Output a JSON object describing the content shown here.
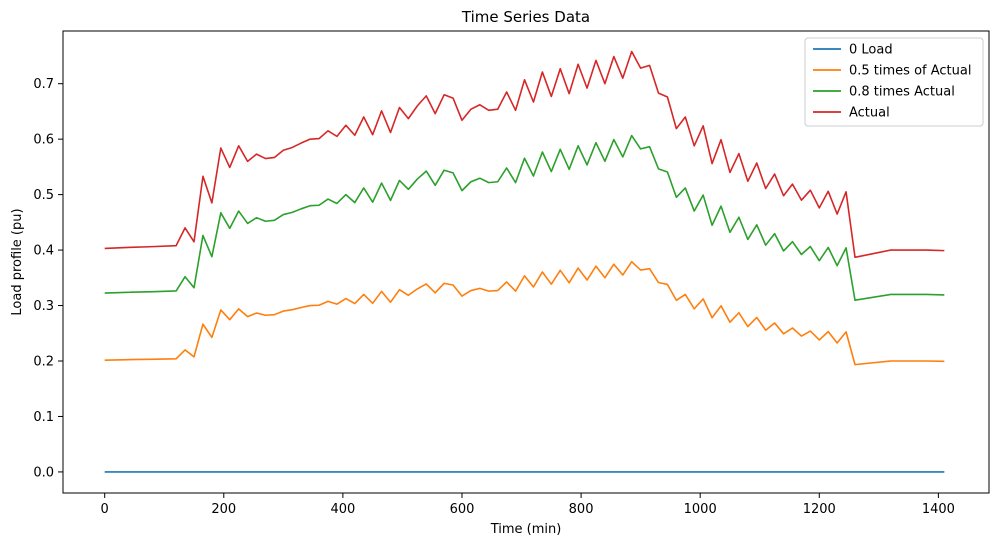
{
  "chart_data": {
    "type": "line",
    "title": "Time Series Data",
    "xlabel": "Time (min)",
    "ylabel": "Load profile (pu)",
    "xlim": [
      -70,
      1485
    ],
    "ylim": [
      -0.038,
      0.795
    ],
    "xticks": [
      0,
      200,
      400,
      600,
      800,
      1000,
      1200,
      1400
    ],
    "yticks": [
      0.0,
      0.1,
      0.2,
      0.3,
      0.4,
      0.5,
      0.6,
      0.7
    ],
    "ytick_labels": [
      "0.0",
      "0.1",
      "0.2",
      "0.3",
      "0.4",
      "0.5",
      "0.6",
      "0.7"
    ],
    "grid": false,
    "legend_position": "top-right",
    "actual_x": [
      0,
      45,
      75,
      120,
      135,
      150,
      165,
      180,
      195,
      210,
      225,
      240,
      255,
      270,
      285,
      300,
      315,
      330,
      345,
      360,
      375,
      390,
      405,
      420,
      435,
      450,
      465,
      480,
      495,
      510,
      525,
      540,
      555,
      570,
      585,
      600,
      615,
      630,
      645,
      660,
      675,
      690,
      705,
      720,
      735,
      750,
      765,
      780,
      795,
      810,
      825,
      840,
      855,
      870,
      885,
      900,
      915,
      930,
      945,
      960,
      975,
      990,
      1005,
      1020,
      1035,
      1050,
      1065,
      1080,
      1095,
      1110,
      1125,
      1140,
      1155,
      1170,
      1185,
      1200,
      1215,
      1230,
      1245,
      1260,
      1320,
      1380,
      1410
    ],
    "actual_y": [
      0.403,
      0.405,
      0.406,
      0.408,
      0.44,
      0.415,
      0.533,
      0.485,
      0.584,
      0.549,
      0.588,
      0.56,
      0.573,
      0.565,
      0.567,
      0.58,
      0.585,
      0.593,
      0.6,
      0.601,
      0.615,
      0.605,
      0.625,
      0.607,
      0.64,
      0.608,
      0.651,
      0.612,
      0.657,
      0.637,
      0.66,
      0.678,
      0.646,
      0.68,
      0.674,
      0.634,
      0.654,
      0.662,
      0.652,
      0.654,
      0.685,
      0.652,
      0.707,
      0.667,
      0.721,
      0.677,
      0.727,
      0.682,
      0.735,
      0.692,
      0.742,
      0.7,
      0.749,
      0.71,
      0.758,
      0.728,
      0.733,
      0.683,
      0.676,
      0.619,
      0.64,
      0.588,
      0.624,
      0.556,
      0.599,
      0.54,
      0.574,
      0.524,
      0.557,
      0.511,
      0.537,
      0.498,
      0.519,
      0.49,
      0.508,
      0.476,
      0.506,
      0.465,
      0.505,
      0.387,
      0.4,
      0.4,
      0.399
    ],
    "series": [
      {
        "name": "0 Load",
        "color": "#1f77b4",
        "values": [
          0,
          0,
          0,
          0,
          0,
          0,
          0,
          0,
          0,
          0,
          0,
          0,
          0,
          0,
          0,
          0,
          0,
          0,
          0,
          0,
          0,
          0,
          0,
          0,
          0,
          0,
          0,
          0,
          0,
          0,
          0,
          0,
          0,
          0,
          0,
          0,
          0,
          0,
          0,
          0,
          0,
          0,
          0,
          0,
          0,
          0,
          0,
          0,
          0,
          0,
          0,
          0,
          0,
          0,
          0,
          0,
          0,
          0,
          0,
          0,
          0,
          0,
          0,
          0,
          0,
          0,
          0,
          0,
          0,
          0,
          0,
          0,
          0,
          0,
          0,
          0,
          0,
          0,
          0,
          0,
          0,
          0,
          0
        ]
      },
      {
        "name": "0.5 times of Actual",
        "color": "#ff7f0e",
        "values": [
          0.2015,
          0.2025,
          0.203,
          0.204,
          0.22,
          0.2075,
          0.2665,
          0.2425,
          0.292,
          0.2745,
          0.294,
          0.28,
          0.2865,
          0.2825,
          0.2835,
          0.29,
          0.2925,
          0.2965,
          0.3,
          0.3005,
          0.3075,
          0.3025,
          0.3125,
          0.3035,
          0.32,
          0.304,
          0.3255,
          0.306,
          0.3285,
          0.3185,
          0.33,
          0.339,
          0.323,
          0.34,
          0.337,
          0.317,
          0.327,
          0.331,
          0.326,
          0.327,
          0.3425,
          0.326,
          0.3535,
          0.3335,
          0.3605,
          0.3385,
          0.3635,
          0.341,
          0.3675,
          0.346,
          0.371,
          0.35,
          0.3745,
          0.355,
          0.379,
          0.364,
          0.3665,
          0.3415,
          0.338,
          0.3095,
          0.32,
          0.294,
          0.312,
          0.278,
          0.2995,
          0.27,
          0.287,
          0.262,
          0.2785,
          0.2555,
          0.2685,
          0.249,
          0.2595,
          0.245,
          0.254,
          0.238,
          0.253,
          0.2325,
          0.2525,
          0.1935,
          0.2,
          0.2,
          0.1995
        ]
      },
      {
        "name": "0.8 times Actual",
        "color": "#2ca02c",
        "values": [
          0.3224,
          0.324,
          0.3248,
          0.3264,
          0.352,
          0.332,
          0.4264,
          0.388,
          0.4672,
          0.4392,
          0.4704,
          0.448,
          0.4584,
          0.452,
          0.4536,
          0.464,
          0.468,
          0.4744,
          0.48,
          0.4808,
          0.492,
          0.484,
          0.5,
          0.4856,
          0.512,
          0.4864,
          0.5208,
          0.4896,
          0.5256,
          0.5096,
          0.528,
          0.5424,
          0.5168,
          0.544,
          0.5392,
          0.5072,
          0.5232,
          0.5296,
          0.5216,
          0.5232,
          0.548,
          0.5216,
          0.5656,
          0.5336,
          0.5768,
          0.5416,
          0.5816,
          0.5456,
          0.588,
          0.5536,
          0.5936,
          0.56,
          0.5992,
          0.568,
          0.6064,
          0.5824,
          0.5864,
          0.5464,
          0.5408,
          0.4952,
          0.512,
          0.4704,
          0.4992,
          0.4448,
          0.4792,
          0.432,
          0.4592,
          0.4192,
          0.4456,
          0.4088,
          0.4296,
          0.3984,
          0.4152,
          0.392,
          0.4064,
          0.3808,
          0.4048,
          0.372,
          0.404,
          0.3096,
          0.32,
          0.32,
          0.3192
        ]
      },
      {
        "name": "Actual",
        "color": "#d62728",
        "values": [
          0.403,
          0.405,
          0.406,
          0.408,
          0.44,
          0.415,
          0.533,
          0.485,
          0.584,
          0.549,
          0.588,
          0.56,
          0.573,
          0.565,
          0.567,
          0.58,
          0.585,
          0.593,
          0.6,
          0.601,
          0.615,
          0.605,
          0.625,
          0.607,
          0.64,
          0.608,
          0.651,
          0.612,
          0.657,
          0.637,
          0.66,
          0.678,
          0.646,
          0.68,
          0.674,
          0.634,
          0.654,
          0.662,
          0.652,
          0.654,
          0.685,
          0.652,
          0.707,
          0.667,
          0.721,
          0.677,
          0.727,
          0.682,
          0.735,
          0.692,
          0.742,
          0.7,
          0.749,
          0.71,
          0.758,
          0.728,
          0.733,
          0.683,
          0.676,
          0.619,
          0.64,
          0.588,
          0.624,
          0.556,
          0.599,
          0.54,
          0.574,
          0.524,
          0.557,
          0.511,
          0.537,
          0.498,
          0.519,
          0.49,
          0.508,
          0.476,
          0.506,
          0.465,
          0.505,
          0.387,
          0.4,
          0.4,
          0.399
        ]
      }
    ]
  }
}
